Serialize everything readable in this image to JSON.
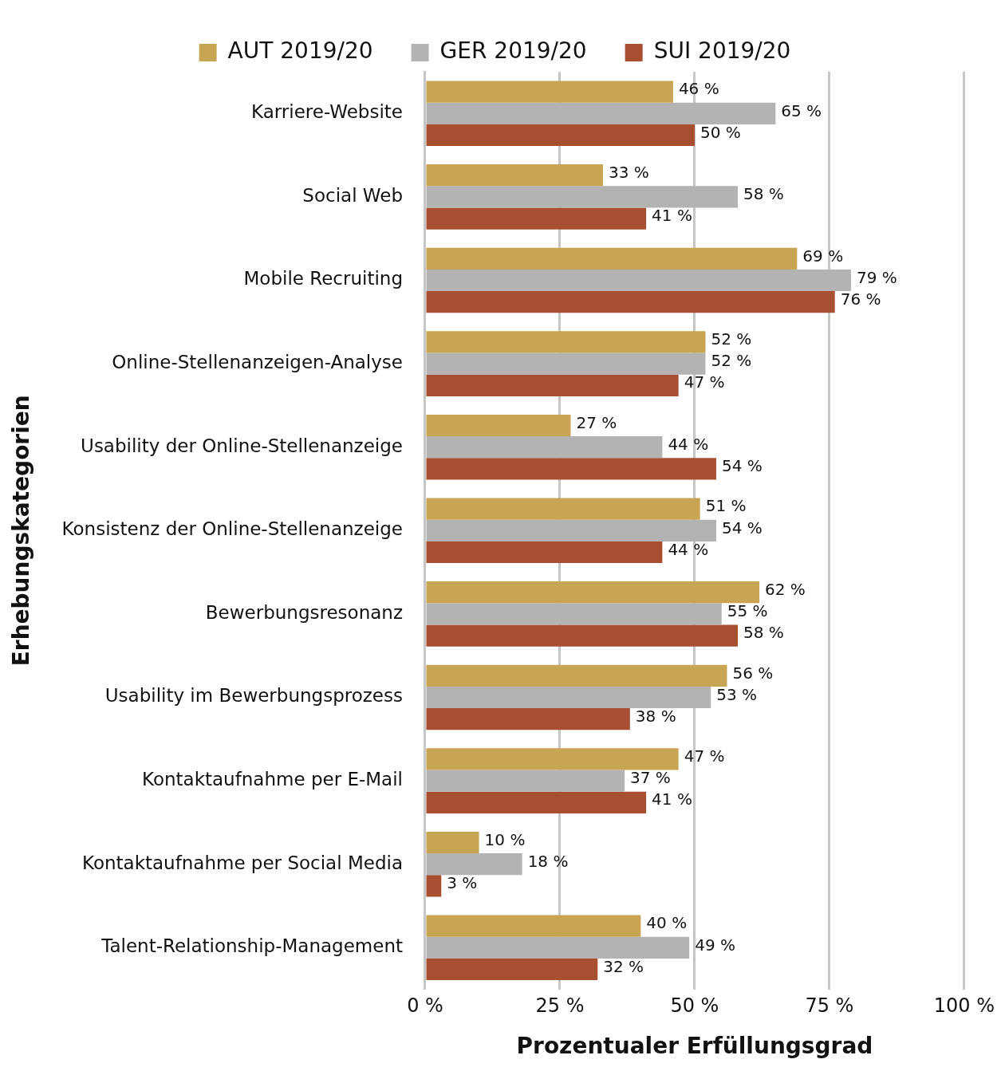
{
  "chart_data": {
    "type": "bar",
    "orientation": "horizontal",
    "xlabel": "Prozentualer Erfüllungsgrad",
    "ylabel": "Erhebungskategorien",
    "categories": [
      "Karriere-Website",
      "Social Web",
      "Mobile Recruiting",
      "Online-Stellenanzeigen-Analyse",
      "Usability der Online-Stellenanzeige",
      "Konsistenz der Online-Stellenanzeige",
      "Bewerbungsresonanz",
      "Usability im Bewerbungsprozess",
      "Kontaktaufnahme per E-Mail",
      "Kontaktaufnahme per Social Media",
      "Talent-Relationship-Management"
    ],
    "series": [
      {
        "name": "AUT 2019/20",
        "color": "#c8a552",
        "values": [
          46,
          33,
          69,
          52,
          27,
          51,
          62,
          56,
          47,
          10,
          40
        ],
        "value_labels": [
          "46 %",
          "33 %",
          "69 %",
          "52 %",
          "27 %",
          "51 %",
          "62 %",
          "56 %",
          "47 %",
          "10 %",
          "40 %"
        ]
      },
      {
        "name": "GER 2019/20",
        "color": "#b3b3b3",
        "values": [
          65,
          58,
          79,
          52,
          44,
          54,
          55,
          53,
          37,
          18,
          49
        ],
        "value_labels": [
          "65 %",
          "58 %",
          "79 %",
          "52 %",
          "44 %",
          "54 %",
          "55 %",
          "53 %",
          "37 %",
          "18 %",
          "49 %"
        ]
      },
      {
        "name": "SUI 2019/20",
        "color": "#a84f32",
        "values": [
          50,
          41,
          76,
          47,
          54,
          44,
          58,
          38,
          41,
          3,
          32
        ],
        "value_labels": [
          "50 %",
          "41 %",
          "76 %",
          "47 %",
          "54 %",
          "44 %",
          "58 %",
          "38 %",
          "41 %",
          "3 %",
          "32 %"
        ]
      }
    ],
    "xlim": [
      0,
      100
    ],
    "xticks": [
      {
        "value": 0,
        "label": "0 %"
      },
      {
        "value": 25,
        "label": "25 %"
      },
      {
        "value": 50,
        "label": "50 %"
      },
      {
        "value": 75,
        "label": "75 %"
      },
      {
        "value": 100,
        "label": "100 %"
      }
    ],
    "grid": "x",
    "legend": "top"
  }
}
